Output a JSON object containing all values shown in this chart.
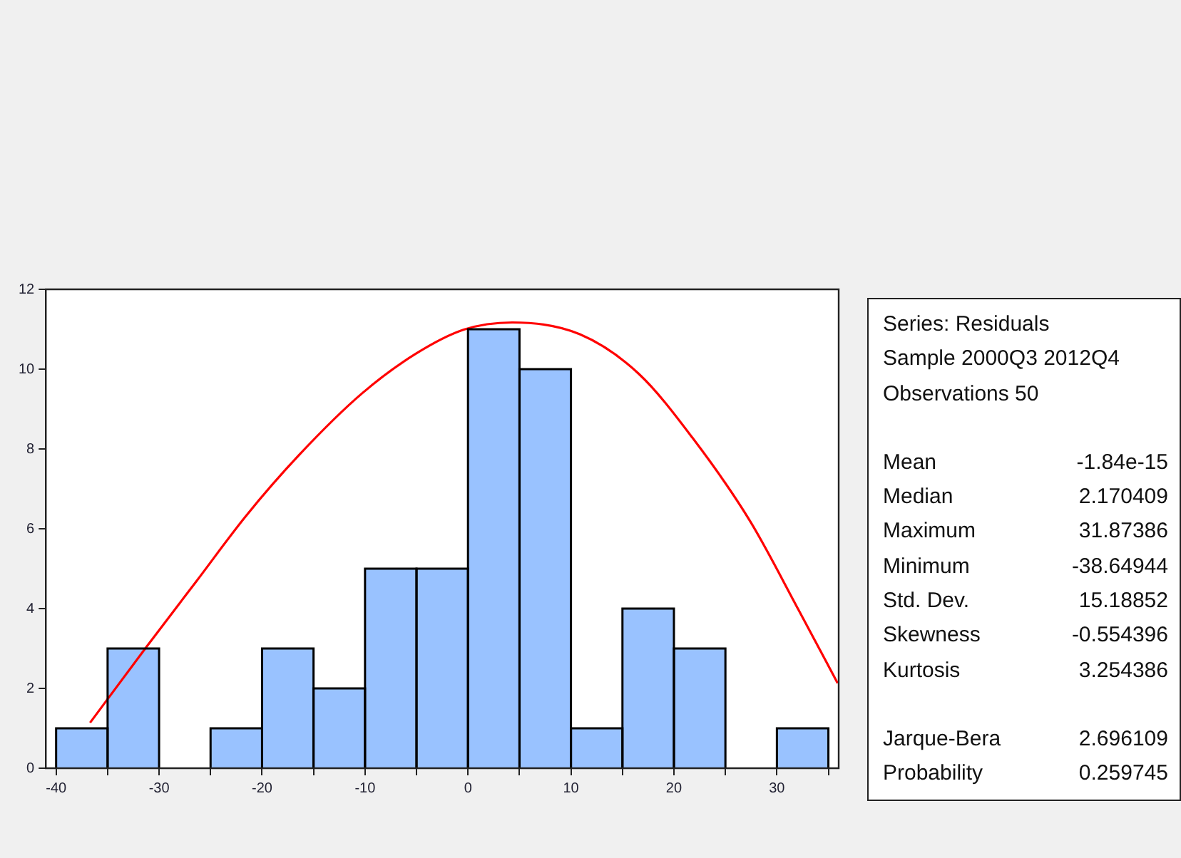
{
  "chart_data": {
    "type": "histogram",
    "bins": [
      -40,
      -35,
      -30,
      -25,
      -20,
      -15,
      -10,
      -5,
      0,
      5,
      10,
      15,
      20,
      25,
      30,
      35
    ],
    "values": [
      1,
      3,
      0,
      1,
      3,
      2,
      5,
      5,
      11,
      10,
      1,
      4,
      3,
      0,
      1
    ],
    "color": "#99c2ff",
    "series": [
      {
        "type": "line",
        "color": "#ff0000",
        "x": [
          -36.7,
          -31.2,
          -26.3,
          -21.6,
          -16.4,
          -10.3,
          -5.1,
          -0.4,
          4.3,
          10.9,
          16.6,
          21.8,
          27.4,
          32.1,
          35.9
        ],
        "values": [
          1.14,
          3.05,
          4.71,
          6.31,
          7.85,
          9.39,
          10.38,
          10.99,
          11.17,
          10.87,
          9.88,
          8.28,
          6.19,
          3.97,
          2.13
        ]
      }
    ],
    "xlim": [
      -41,
      36
    ],
    "xticks": [
      -40,
      {
        "value": -35,
        "label": null
      },
      -30,
      {
        "value": -25,
        "label": null
      },
      -20,
      {
        "value": -15,
        "label": null
      },
      -10,
      {
        "value": -5,
        "label": null
      },
      0,
      {
        "value": 5,
        "label": null
      },
      10,
      {
        "value": 15,
        "label": null
      },
      20,
      {
        "value": 25,
        "label": null
      },
      30,
      {
        "value": 35,
        "label": null
      }
    ],
    "ylim": [
      0,
      12
    ],
    "yticks": [
      0,
      2,
      4,
      6,
      8,
      10,
      12
    ],
    "grid": false,
    "legend": false,
    "annotations": [
      "Series: Residuals",
      "Sample 2000Q3 2012Q4",
      "Observations 50",
      "Mean -1.84e-15",
      "Median 2.170409",
      "Maximum 31.87386",
      "Minimum -38.64944",
      "Std. Dev. 15.18852",
      "Skewness -0.554396",
      "Kurtosis 3.254386",
      "Jarque-Bera 2.696109",
      "Probability 0.259745"
    ]
  }
}
